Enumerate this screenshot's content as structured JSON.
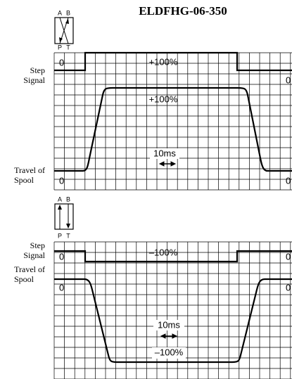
{
  "title": "ELDFHG-06-350",
  "panels": [
    {
      "valve": {
        "a": "A",
        "b": "B",
        "p": "P",
        "t": "T"
      },
      "step_label": [
        "Step",
        "Signal"
      ],
      "travel_label": [
        "Travel of",
        "Spool"
      ],
      "step_zero_left": "0",
      "step_level": "+100%",
      "step_zero_right": "0",
      "travel_level": "+100%",
      "time_scale": "10ms",
      "travel_zero_left": "0",
      "travel_zero_right": "0"
    },
    {
      "valve": {
        "a": "A",
        "b": "B",
        "p": "P",
        "t": "T"
      },
      "step_label": [
        "Step",
        "Signal"
      ],
      "travel_label": [
        "Travel of",
        "Spool"
      ],
      "step_zero_left": "0",
      "step_level": "–100%",
      "step_zero_right": "0",
      "travel_zero_left": "0",
      "travel_zero_right": "0",
      "time_scale": "10ms",
      "travel_level": "–100%"
    }
  ]
}
